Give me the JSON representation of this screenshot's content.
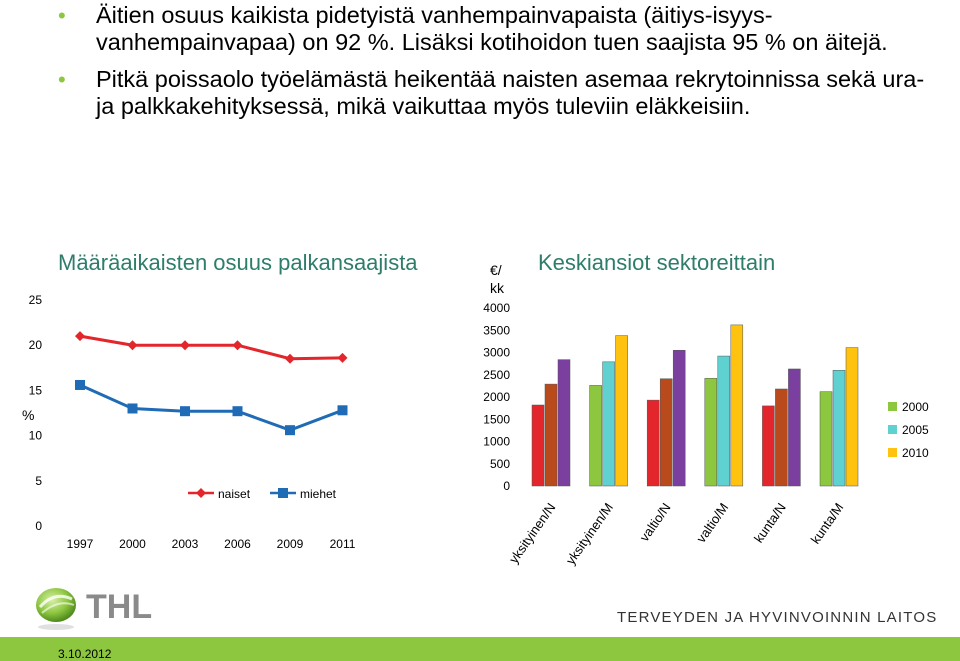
{
  "bullets": [
    "Äitien osuus kaikista pidetyistä vanhempainvapaista (äitiys-isyys-vanhempainvapaa) on 92 %. Lisäksi kotihoidon tuen saajista 95 % on äitejä.",
    "Pitkä poissaolo työelämästä heikentää naisten asemaa rekrytoinnissa sekä ura- ja palkkakehityksessä, mikä vaikuttaa myös tuleviin eläkkeisiin."
  ],
  "colors": {
    "accent_green": "#8dc63f",
    "naiset": "#e3262b",
    "miehet": "#1f6bb6",
    "s2000": "#29b9e9",
    "s2005": "#5fd1d1",
    "s2010": "#ffc20e"
  },
  "chart_data": [
    {
      "type": "line",
      "title": "Määräaikaisten osuus palkansaajista",
      "ylabel": "%",
      "xlabel": "",
      "x": [
        "1997",
        "2000",
        "2003",
        "2006",
        "2009",
        "2011"
      ],
      "ylim": [
        0,
        25
      ],
      "yticks": [
        "0",
        "5",
        "10",
        "15",
        "20",
        "25"
      ],
      "grid": false,
      "legend_position": "bottom-center",
      "series": [
        {
          "name": "naiset",
          "values": [
            21,
            20,
            20,
            20,
            18.5,
            18.6
          ],
          "color": "#e3262b",
          "marker": "diamond"
        },
        {
          "name": "miehet",
          "values": [
            15.6,
            13,
            12.7,
            12.7,
            10.6,
            12.8
          ],
          "color": "#1f6bb6",
          "marker": "square"
        }
      ]
    },
    {
      "type": "bar",
      "title": "Keskiansiot sektoreittain",
      "ylabel": "€/ kk",
      "xlabel": "",
      "categories": [
        "yksityinen/N",
        "yksityinen/M",
        "valtio/N",
        "valtio/M",
        "kunta/N",
        "kunta/M"
      ],
      "ylim": [
        0,
        4000
      ],
      "yticks": [
        "0",
        "500",
        "1000",
        "1500",
        "2000",
        "2500",
        "3000",
        "3500",
        "4000"
      ],
      "grid": false,
      "legend_position": "right",
      "series": [
        {
          "name": "2000",
          "values": [
            1820,
            2260,
            1930,
            2420,
            1800,
            2120
          ]
        },
        {
          "name": "2005",
          "values": [
            2290,
            2790,
            2410,
            2920,
            2180,
            2600
          ]
        },
        {
          "name": "2010",
          "values": [
            2840,
            3380,
            3050,
            3620,
            2630,
            3110
          ]
        }
      ],
      "bar_colors": [
        [
          "#e3262b",
          "#b94a1c",
          "#7b3fa0"
        ],
        [
          "#8dc63f",
          "#5fd1d1",
          "#ffc20e"
        ],
        [
          "#e3262b",
          "#b94a1c",
          "#7b3fa0"
        ],
        [
          "#8dc63f",
          "#5fd1d1",
          "#ffc20e"
        ],
        [
          "#e3262b",
          "#b94a1c",
          "#7b3fa0"
        ],
        [
          "#8dc63f",
          "#5fd1d1",
          "#ffc20e"
        ]
      ],
      "legend_colors": [
        "#8dc63f",
        "#5fd1d1",
        "#ffc20e"
      ]
    }
  ],
  "footer": {
    "logo_text": "THL",
    "institution": "TERVEYDEN JA HYVINVOINNIN LAITOS",
    "date": "3.10.2012"
  }
}
